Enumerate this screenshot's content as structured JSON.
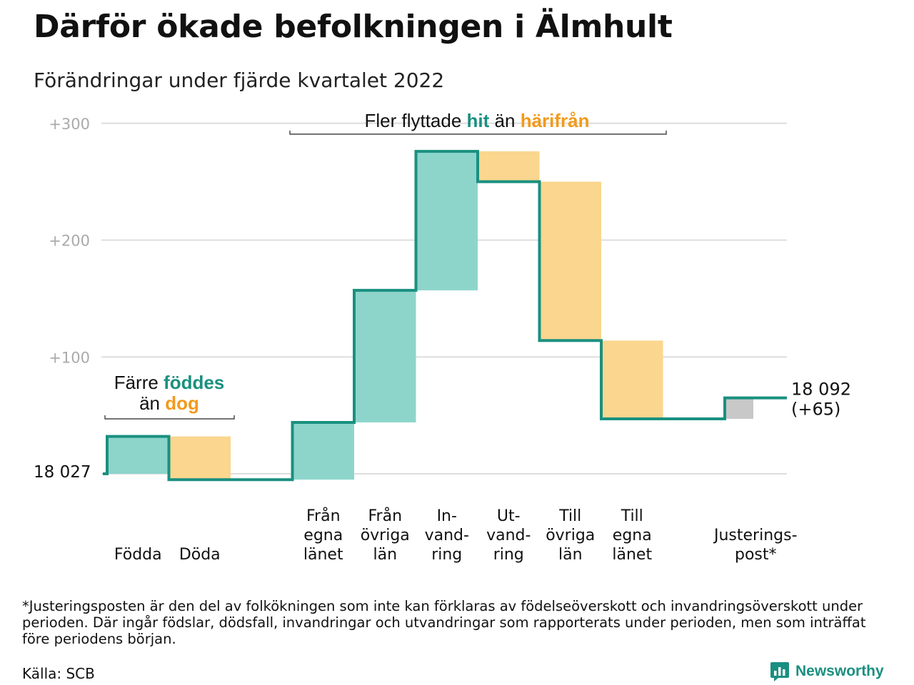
{
  "title": "Därför ökade befolkningen i Älmhult",
  "subtitle": "Förändringar under fjärde kvartalet 2022",
  "colors": {
    "increase": "#8dd5cb",
    "decrease": "#fad68e",
    "adjust": "#c8c8c8",
    "line": "#1a9080",
    "teal_text": "#1a9080",
    "orange_text": "#f29a1b",
    "grid": "#dddddd",
    "tick": "#aaaaaa"
  },
  "chart_data": {
    "type": "waterfall",
    "start_value": 18027,
    "start_label": "18 027",
    "end_label_line1": "18 092",
    "end_label_line2": "(+65)",
    "y_ticks": [
      {
        "value": 300,
        "label": "+300"
      },
      {
        "value": 200,
        "label": "+200"
      },
      {
        "value": 100,
        "label": "+100"
      }
    ],
    "ylim": [
      0,
      300
    ],
    "steps": [
      {
        "label": [
          "Födda"
        ],
        "change": 32,
        "kind": "increase"
      },
      {
        "label": [
          "Döda"
        ],
        "change": -37,
        "kind": "decrease"
      },
      {
        "label": [],
        "change": 0,
        "kind": "gap"
      },
      {
        "label": [
          "Från",
          "egna",
          "länet"
        ],
        "change": 49,
        "kind": "increase"
      },
      {
        "label": [
          "Från",
          "övriga",
          "län"
        ],
        "change": 113,
        "kind": "increase"
      },
      {
        "label": [
          "In-",
          "vand-",
          "ring"
        ],
        "change": 119,
        "kind": "increase"
      },
      {
        "label": [
          "Ut-",
          "vand-",
          "ring"
        ],
        "change": -26,
        "kind": "decrease"
      },
      {
        "label": [
          "Till",
          "övriga",
          "län"
        ],
        "change": -136,
        "kind": "decrease"
      },
      {
        "label": [
          "Till",
          "egna",
          "länet"
        ],
        "change": -67,
        "kind": "decrease"
      },
      {
        "label": [],
        "change": 0,
        "kind": "gap"
      },
      {
        "label": [
          "Justerings-",
          "post*"
        ],
        "change": 18,
        "kind": "adjust"
      }
    ],
    "annotations": {
      "births": {
        "l1_a": "Färre ",
        "l1_b": "föddes",
        "l2_a": "än ",
        "l2_b": "dog"
      },
      "migration": {
        "a": "Fler flyttade ",
        "b": "hit",
        "c": " än ",
        "d": "härifrån"
      }
    }
  },
  "footnote": "*Justeringsposten är den del av folkökningen som inte kan förklaras av födelseöverskott och invandringsöverskott under perioden. Där ingår födslar, dödsfall, invandringar och utvandringar som rapporterats under perioden, men som inträffat före periodens början.",
  "source": "Källa: SCB",
  "brand": {
    "name": "Newsworthy",
    "icon": "newsworthy-logo-icon"
  }
}
